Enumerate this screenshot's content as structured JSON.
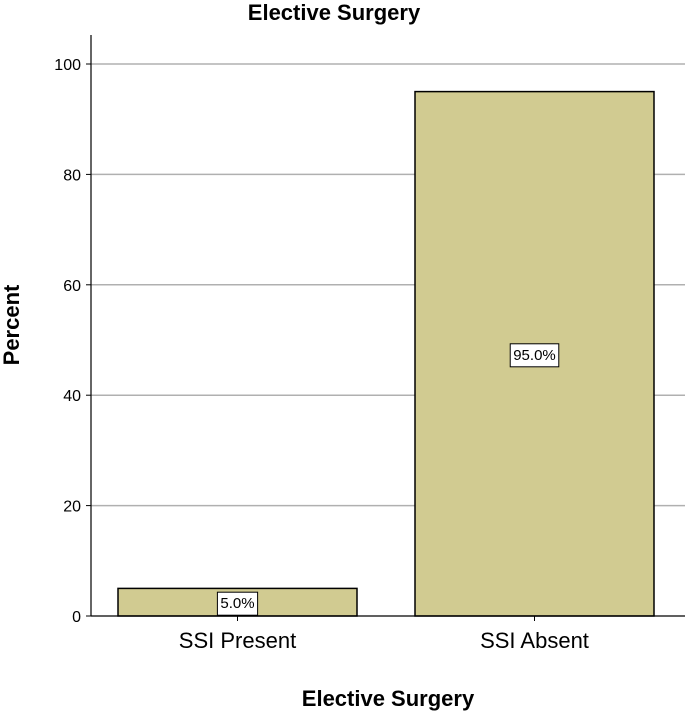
{
  "chart_data": {
    "type": "bar",
    "title": "Elective Surgery",
    "xlabel": "Elective Surgery",
    "ylabel": "Percent",
    "categories": [
      "SSI Present",
      "SSI Absent"
    ],
    "values": [
      5.0,
      95.0
    ],
    "data_labels": [
      "5.0%",
      "95.0%"
    ],
    "ylim": [
      0,
      105
    ],
    "yticks": [
      0,
      20,
      40,
      60,
      80,
      100
    ],
    "grid": true,
    "legend": "none",
    "colors": {
      "bar_fill": "#d1cb91",
      "bar_stroke": "#000000",
      "grid": "#b0b0b0"
    }
  }
}
